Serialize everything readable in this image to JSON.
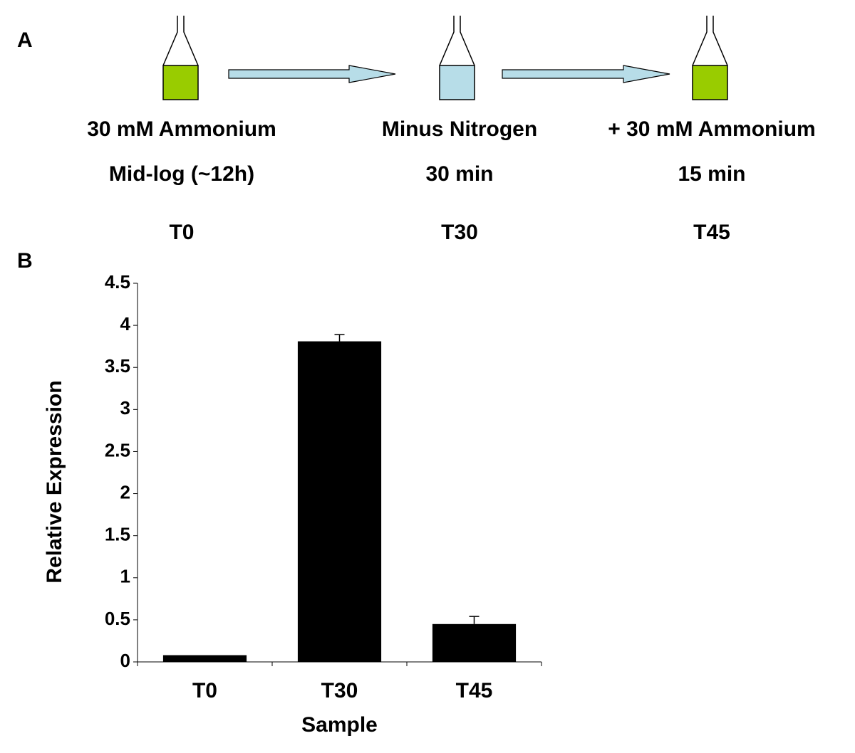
{
  "panel_a": {
    "label": "A",
    "steps": [
      {
        "condition": "30 mM Ammonium",
        "duration": "Mid-log (~12h)",
        "sample": "T0"
      },
      {
        "condition": "Minus Nitrogen",
        "duration": "30 min",
        "sample": "T30"
      },
      {
        "condition": "+ 30 mM Ammonium",
        "duration": "15 min",
        "sample": "T45"
      }
    ]
  },
  "panel_b": {
    "label": "B"
  },
  "chart_data": {
    "type": "bar",
    "x_label": "Sample",
    "y_label": "Relative Expression",
    "categories": [
      "T0",
      "T30",
      "T45"
    ],
    "values": [
      0.08,
      3.81,
      0.45
    ],
    "errors": [
      null,
      0.08,
      0.09
    ],
    "color": "#000000",
    "ylim": [
      0,
      4.5
    ],
    "yticks": [
      0,
      0.5,
      1,
      1.5,
      2,
      2.5,
      3,
      3.5,
      4,
      4.5
    ],
    "grid": false
  }
}
